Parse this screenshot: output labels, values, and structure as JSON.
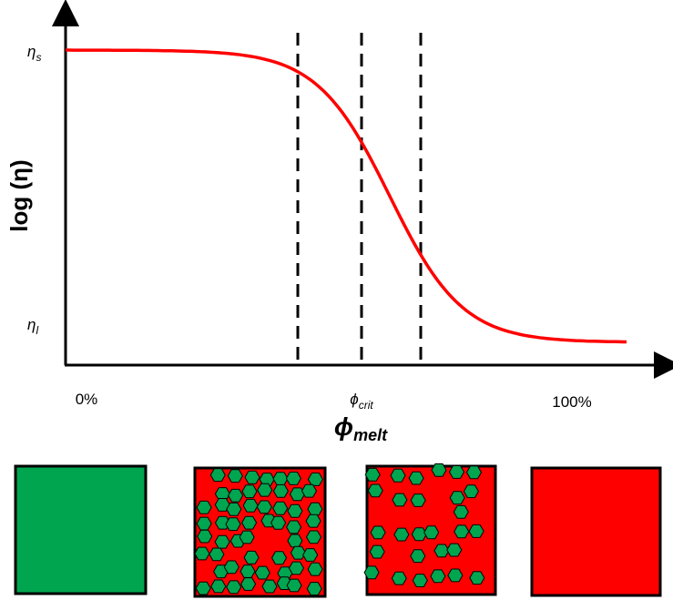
{
  "y_axis": {
    "label": "log (η)",
    "ticks": [
      {
        "symbol": "η",
        "subscript": "s"
      },
      {
        "symbol": "η",
        "subscript": "l"
      }
    ]
  },
  "x_axis": {
    "ticks": [
      "0%",
      {
        "symbol": "ϕ",
        "subscript": "crit"
      },
      "100%"
    ],
    "label": {
      "symbol": "ϕ",
      "subscript": "melt"
    }
  }
}
